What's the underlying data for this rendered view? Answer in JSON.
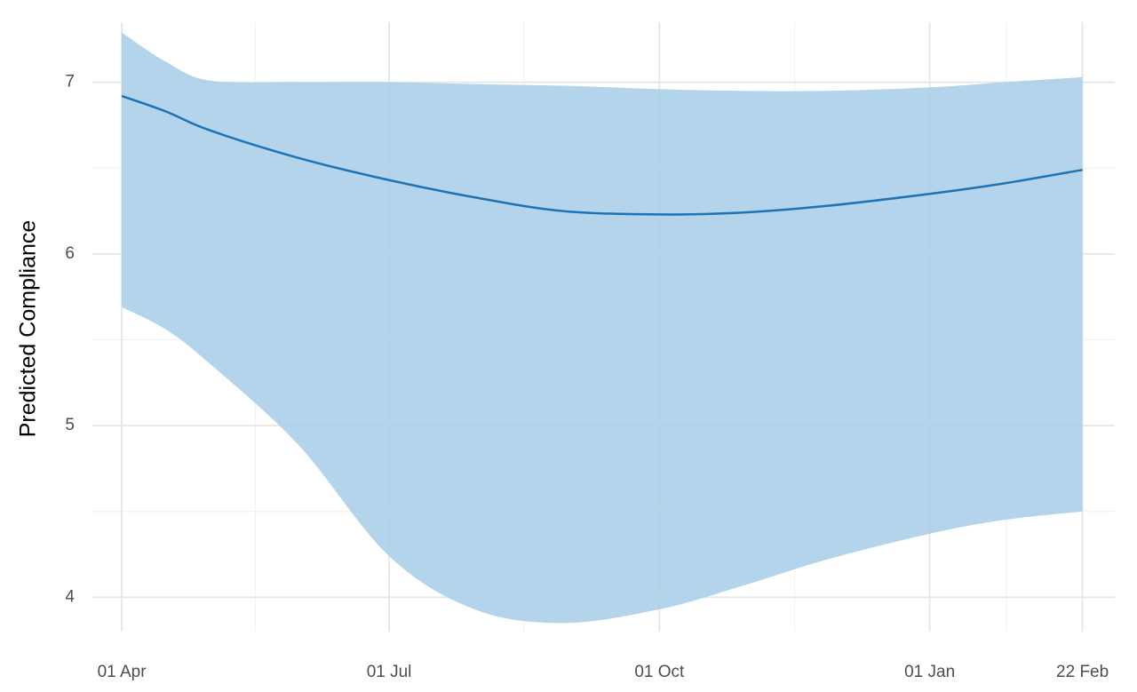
{
  "chart_data": {
    "type": "line",
    "y_label": "Predicted Compliance",
    "x": [
      0,
      15,
      30,
      60,
      91,
      120,
      150,
      183,
      210,
      240,
      275,
      300,
      327
    ],
    "values": [
      6.92,
      6.83,
      6.72,
      6.56,
      6.43,
      6.33,
      6.25,
      6.23,
      6.24,
      6.28,
      6.35,
      6.41,
      6.49
    ],
    "upper": [
      7.29,
      7.12,
      7.01,
      7.0,
      7.0,
      6.99,
      6.98,
      6.96,
      6.95,
      6.95,
      6.97,
      7.0,
      7.03
    ],
    "lower": [
      5.69,
      5.56,
      5.36,
      4.89,
      4.24,
      3.93,
      3.85,
      3.93,
      4.06,
      4.22,
      4.37,
      4.45,
      4.5
    ],
    "color": "#1c73b5",
    "band_color": "#a6cde6",
    "xlim": [
      -10,
      338
    ],
    "ylim": [
      3.8,
      7.35
    ],
    "xticks": [
      {
        "value": 0,
        "label": "01 Apr"
      },
      {
        "value": 91,
        "label": "01 Jul"
      },
      {
        "value": 183,
        "label": "01 Oct"
      },
      {
        "value": 275,
        "label": "01 Jan"
      },
      {
        "value": 327,
        "label": "22 Feb"
      }
    ],
    "x_minor_ticks": [
      45.5,
      137,
      229,
      301
    ],
    "yticks": [
      4,
      5,
      6,
      7
    ],
    "y_minor_ticks": [
      4.5,
      5.5,
      6.5
    ],
    "grid": true
  }
}
